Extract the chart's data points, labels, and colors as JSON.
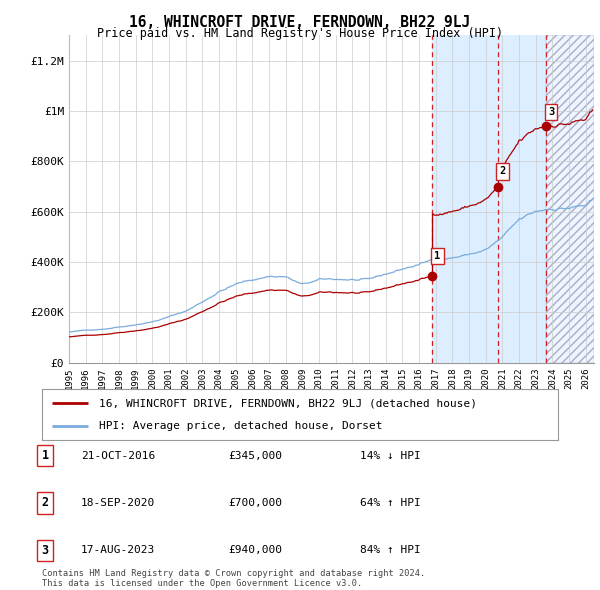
{
  "title": "16, WHINCROFT DRIVE, FERNDOWN, BH22 9LJ",
  "subtitle": "Price paid vs. HM Land Registry's House Price Index (HPI)",
  "ylim": [
    0,
    1300000
  ],
  "xlim_start": 1995.0,
  "xlim_end": 2026.5,
  "yticks": [
    0,
    200000,
    400000,
    600000,
    800000,
    1000000,
    1200000
  ],
  "ytick_labels": [
    "£0",
    "£200K",
    "£400K",
    "£600K",
    "£800K",
    "£1M",
    "£1.2M"
  ],
  "xtick_years": [
    1995,
    1996,
    1997,
    1998,
    1999,
    2000,
    2001,
    2002,
    2003,
    2004,
    2005,
    2006,
    2007,
    2008,
    2009,
    2010,
    2011,
    2012,
    2013,
    2014,
    2015,
    2016,
    2017,
    2018,
    2019,
    2020,
    2021,
    2022,
    2023,
    2024,
    2025,
    2026
  ],
  "sale_dates_decimal": [
    2016.8,
    2020.72,
    2023.62
  ],
  "sale_prices": [
    345000,
    700000,
    940000
  ],
  "sale_labels": [
    "1",
    "2",
    "3"
  ],
  "hpi_color": "#7aacdc",
  "sale_line_color": "#aa0000",
  "solid_shade_color": "#dceeff",
  "hatch_shade_color": "#dceeff",
  "legend_label_sale": "16, WHINCROFT DRIVE, FERNDOWN, BH22 9LJ (detached house)",
  "legend_label_hpi": "HPI: Average price, detached house, Dorset",
  "table_data": [
    [
      "1",
      "21-OCT-2016",
      "£345,000",
      "14% ↓ HPI"
    ],
    [
      "2",
      "18-SEP-2020",
      "£700,000",
      "64% ↑ HPI"
    ],
    [
      "3",
      "17-AUG-2023",
      "£940,000",
      "84% ↑ HPI"
    ]
  ],
  "footnote": "Contains HM Land Registry data © Crown copyright and database right 2024.\nThis data is licensed under the Open Government Licence v3.0.",
  "bg_color": "#ffffff",
  "grid_color": "#cccccc"
}
